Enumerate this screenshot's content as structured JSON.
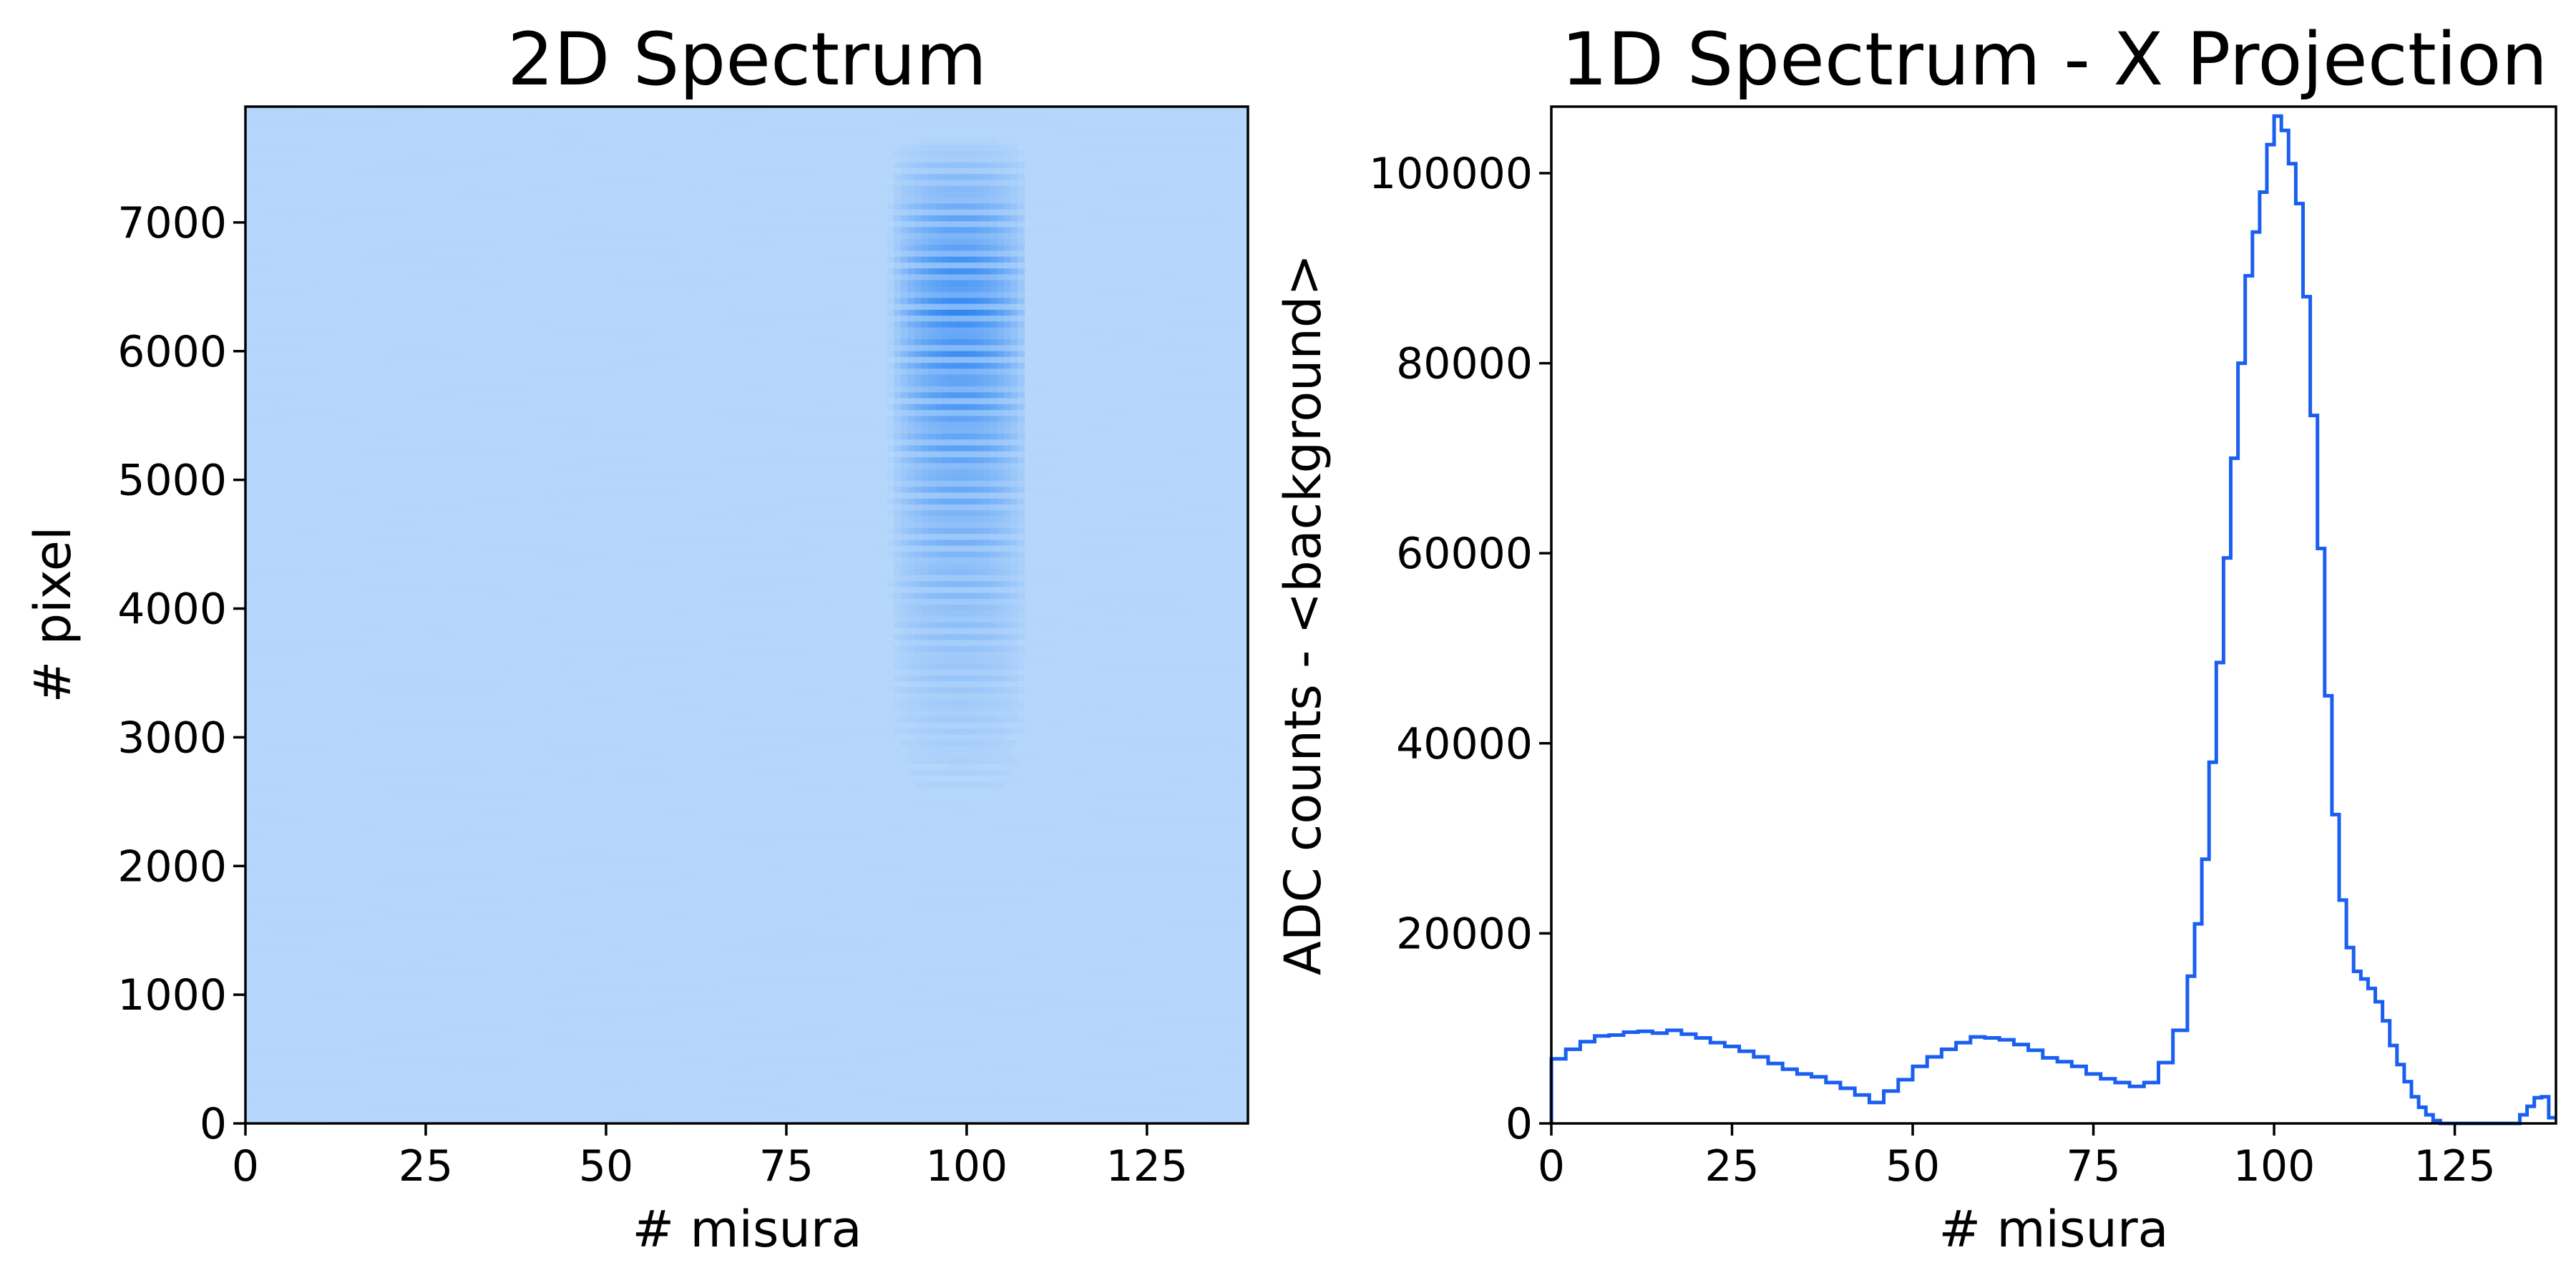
{
  "chart_data": [
    {
      "type": "heatmap",
      "title": "2D Spectrum",
      "xlabel": "# misura",
      "ylabel": "# pixel",
      "xlim": [
        0,
        139
      ],
      "ylim": [
        0,
        7900
      ],
      "xticks": [
        "0",
        "25",
        "50",
        "75",
        "100",
        "125"
      ],
      "yticks": [
        "0",
        "1000",
        "2000",
        "3000",
        "4000",
        "5000",
        "6000",
        "7000"
      ],
      "grid": false,
      "colors": {
        "background": "#b4d6fb",
        "peak": "#2f86f2"
      },
      "band": {
        "x_range": [
          88,
          108
        ],
        "x_center": 99,
        "y_range": [
          2200,
          7700
        ],
        "peak_y": 6300,
        "fringe_period_y": 105
      }
    },
    {
      "type": "line",
      "title": "1D Spectrum - X Projection",
      "xlabel": "# misura",
      "ylabel": "ADC counts - <background>",
      "xlim": [
        0,
        139
      ],
      "ylim": [
        0,
        107000
      ],
      "xticks": [
        "0",
        "25",
        "50",
        "75",
        "100",
        "125"
      ],
      "yticks": [
        "0",
        "20000",
        "40000",
        "60000",
        "80000",
        "100000"
      ],
      "grid": false,
      "step": true,
      "color": "#1a5ff0",
      "x": [
        0,
        2,
        4,
        6,
        8,
        10,
        12,
        14,
        16,
        18,
        20,
        22,
        24,
        26,
        28,
        30,
        32,
        34,
        36,
        38,
        40,
        42,
        44,
        46,
        48,
        50,
        52,
        54,
        56,
        58,
        60,
        62,
        64,
        66,
        68,
        70,
        72,
        74,
        76,
        78,
        80,
        82,
        84,
        86,
        88,
        89,
        90,
        91,
        92,
        93,
        94,
        95,
        96,
        97,
        98,
        99,
        100,
        101,
        102,
        103,
        104,
        105,
        106,
        107,
        108,
        109,
        110,
        111,
        112,
        113,
        114,
        115,
        116,
        117,
        118,
        119,
        120,
        121,
        122,
        123,
        124,
        134,
        135,
        136,
        137,
        138
      ],
      "y": [
        6800,
        7800,
        8600,
        9200,
        9300,
        9600,
        9700,
        9500,
        9800,
        9400,
        9000,
        8500,
        8100,
        7600,
        7000,
        6300,
        5700,
        5200,
        4900,
        4300,
        3700,
        3000,
        2200,
        3400,
        4600,
        6000,
        7000,
        7800,
        8500,
        9100,
        9000,
        8800,
        8300,
        7700,
        6900,
        6500,
        6000,
        5200,
        4700,
        4300,
        3900,
        4300,
        6400,
        9800,
        15500,
        21000,
        27800,
        38000,
        48500,
        59500,
        70000,
        80000,
        89200,
        93800,
        98000,
        103000,
        106000,
        104500,
        101000,
        96800,
        87000,
        74500,
        60500,
        45000,
        32500,
        23500,
        18500,
        16000,
        15200,
        14200,
        12800,
        10800,
        8200,
        6200,
        4400,
        2800,
        1700,
        900,
        300,
        0,
        0,
        900,
        1800,
        2700,
        2800,
        600
      ]
    }
  ]
}
